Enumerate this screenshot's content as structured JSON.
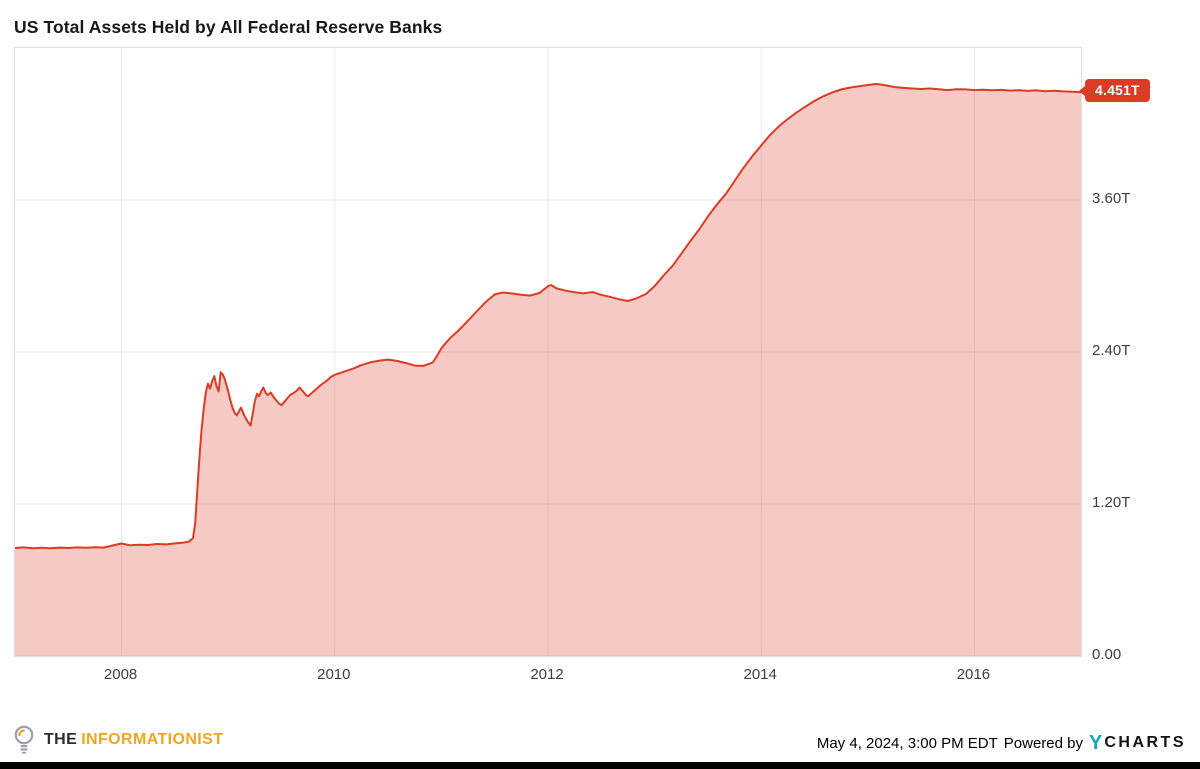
{
  "page": {
    "title": "US Total Assets Held by All Federal Reserve Banks"
  },
  "colors": {
    "line": "#dc3b24",
    "fill": "rgba(220,59,36,0.27)",
    "grid": "#e9e9e9",
    "border": "#e0e0e0",
    "brand_orange": "#f2a51c",
    "ycharts_teal": "#14a5c5",
    "bottom_bar": "#000000"
  },
  "chart_data": {
    "type": "area",
    "title": "US Total Assets Held by All Federal Reserve Banks",
    "xlim": [
      2007,
      2017
    ],
    "ylim": [
      0,
      4.8
    ],
    "grid": true,
    "legend_position": "none",
    "x_ticks": [
      {
        "value": 2008,
        "label": "2008"
      },
      {
        "value": 2010,
        "label": "2010"
      },
      {
        "value": 2012,
        "label": "2012"
      },
      {
        "value": 2014,
        "label": "2014"
      },
      {
        "value": 2016,
        "label": "2016"
      }
    ],
    "y_ticks": [
      {
        "value": 3.6,
        "label": "3.60T"
      },
      {
        "value": 2.4,
        "label": "2.40T"
      },
      {
        "value": 1.2,
        "label": "1.20T"
      },
      {
        "value": 0,
        "label": "0.00"
      }
    ],
    "last_value": 4.451,
    "last_value_label": "4.451T",
    "points": [
      [
        2007.0,
        0.853
      ],
      [
        2007.08,
        0.857
      ],
      [
        2007.17,
        0.851
      ],
      [
        2007.25,
        0.855
      ],
      [
        2007.33,
        0.85
      ],
      [
        2007.42,
        0.856
      ],
      [
        2007.5,
        0.853
      ],
      [
        2007.58,
        0.857
      ],
      [
        2007.67,
        0.854
      ],
      [
        2007.75,
        0.859
      ],
      [
        2007.83,
        0.856
      ],
      [
        2007.92,
        0.873
      ],
      [
        2008.0,
        0.888
      ],
      [
        2008.08,
        0.874
      ],
      [
        2008.17,
        0.879
      ],
      [
        2008.25,
        0.876
      ],
      [
        2008.33,
        0.884
      ],
      [
        2008.42,
        0.881
      ],
      [
        2008.5,
        0.889
      ],
      [
        2008.58,
        0.895
      ],
      [
        2008.63,
        0.902
      ],
      [
        2008.67,
        0.93
      ],
      [
        2008.69,
        1.05
      ],
      [
        2008.71,
        1.31
      ],
      [
        2008.73,
        1.56
      ],
      [
        2008.75,
        1.78
      ],
      [
        2008.77,
        1.95
      ],
      [
        2008.79,
        2.08
      ],
      [
        2008.81,
        2.15
      ],
      [
        2008.83,
        2.11
      ],
      [
        2008.85,
        2.17
      ],
      [
        2008.87,
        2.21
      ],
      [
        2008.89,
        2.13
      ],
      [
        2008.91,
        2.09
      ],
      [
        2008.93,
        2.24
      ],
      [
        2008.95,
        2.22
      ],
      [
        2008.97,
        2.18
      ],
      [
        2009.0,
        2.09
      ],
      [
        2009.02,
        2.02
      ],
      [
        2009.04,
        1.96
      ],
      [
        2009.06,
        1.92
      ],
      [
        2009.08,
        1.9
      ],
      [
        2009.1,
        1.93
      ],
      [
        2009.12,
        1.96
      ],
      [
        2009.15,
        1.9
      ],
      [
        2009.17,
        1.87
      ],
      [
        2009.19,
        1.84
      ],
      [
        2009.21,
        1.82
      ],
      [
        2009.23,
        1.91
      ],
      [
        2009.25,
        2.01
      ],
      [
        2009.27,
        2.07
      ],
      [
        2009.29,
        2.05
      ],
      [
        2009.31,
        2.09
      ],
      [
        2009.33,
        2.12
      ],
      [
        2009.35,
        2.08
      ],
      [
        2009.37,
        2.06
      ],
      [
        2009.4,
        2.08
      ],
      [
        2009.42,
        2.05
      ],
      [
        2009.44,
        2.03
      ],
      [
        2009.46,
        2.01
      ],
      [
        2009.48,
        1.99
      ],
      [
        2009.5,
        1.98
      ],
      [
        2009.52,
        2.0
      ],
      [
        2009.54,
        2.02
      ],
      [
        2009.56,
        2.04
      ],
      [
        2009.58,
        2.06
      ],
      [
        2009.62,
        2.08
      ],
      [
        2009.65,
        2.1
      ],
      [
        2009.67,
        2.12
      ],
      [
        2009.69,
        2.1
      ],
      [
        2009.71,
        2.08
      ],
      [
        2009.73,
        2.06
      ],
      [
        2009.75,
        2.05
      ],
      [
        2009.79,
        2.08
      ],
      [
        2009.83,
        2.11
      ],
      [
        2009.87,
        2.14
      ],
      [
        2009.92,
        2.17
      ],
      [
        2009.96,
        2.2
      ],
      [
        2010.0,
        2.22
      ],
      [
        2010.08,
        2.243
      ],
      [
        2010.17,
        2.268
      ],
      [
        2010.25,
        2.296
      ],
      [
        2010.33,
        2.318
      ],
      [
        2010.42,
        2.332
      ],
      [
        2010.5,
        2.34
      ],
      [
        2010.58,
        2.33
      ],
      [
        2010.67,
        2.312
      ],
      [
        2010.75,
        2.293
      ],
      [
        2010.83,
        2.29
      ],
      [
        2010.92,
        2.318
      ],
      [
        2010.96,
        2.37
      ],
      [
        2011.0,
        2.43
      ],
      [
        2011.08,
        2.508
      ],
      [
        2011.17,
        2.578
      ],
      [
        2011.25,
        2.648
      ],
      [
        2011.33,
        2.72
      ],
      [
        2011.42,
        2.798
      ],
      [
        2011.5,
        2.855
      ],
      [
        2011.58,
        2.87
      ],
      [
        2011.67,
        2.861
      ],
      [
        2011.75,
        2.852
      ],
      [
        2011.83,
        2.845
      ],
      [
        2011.92,
        2.866
      ],
      [
        2012.0,
        2.92
      ],
      [
        2012.03,
        2.928
      ],
      [
        2012.08,
        2.902
      ],
      [
        2012.17,
        2.884
      ],
      [
        2012.25,
        2.871
      ],
      [
        2012.33,
        2.863
      ],
      [
        2012.38,
        2.869
      ],
      [
        2012.42,
        2.873
      ],
      [
        2012.5,
        2.851
      ],
      [
        2012.58,
        2.836
      ],
      [
        2012.67,
        2.816
      ],
      [
        2012.75,
        2.803
      ],
      [
        2012.83,
        2.823
      ],
      [
        2012.92,
        2.859
      ],
      [
        2013.0,
        2.92
      ],
      [
        2013.08,
        3.0
      ],
      [
        2013.17,
        3.081
      ],
      [
        2013.25,
        3.175
      ],
      [
        2013.33,
        3.27
      ],
      [
        2013.42,
        3.37
      ],
      [
        2013.5,
        3.47
      ],
      [
        2013.58,
        3.56
      ],
      [
        2013.67,
        3.65
      ],
      [
        2013.75,
        3.75
      ],
      [
        2013.83,
        3.85
      ],
      [
        2013.92,
        3.95
      ],
      [
        2014.0,
        4.03
      ],
      [
        2014.08,
        4.11
      ],
      [
        2014.17,
        4.185
      ],
      [
        2014.25,
        4.24
      ],
      [
        2014.33,
        4.29
      ],
      [
        2014.42,
        4.34
      ],
      [
        2014.5,
        4.382
      ],
      [
        2014.58,
        4.418
      ],
      [
        2014.67,
        4.45
      ],
      [
        2014.75,
        4.472
      ],
      [
        2014.83,
        4.487
      ],
      [
        2014.92,
        4.498
      ],
      [
        2015.0,
        4.508
      ],
      [
        2015.08,
        4.516
      ],
      [
        2015.12,
        4.512
      ],
      [
        2015.17,
        4.505
      ],
      [
        2015.25,
        4.492
      ],
      [
        2015.33,
        4.485
      ],
      [
        2015.42,
        4.48
      ],
      [
        2015.5,
        4.476
      ],
      [
        2015.58,
        4.48
      ],
      [
        2015.67,
        4.474
      ],
      [
        2015.75,
        4.468
      ],
      [
        2015.83,
        4.474
      ],
      [
        2015.92,
        4.473
      ],
      [
        2016.0,
        4.468
      ],
      [
        2016.08,
        4.471
      ],
      [
        2016.17,
        4.466
      ],
      [
        2016.25,
        4.469
      ],
      [
        2016.33,
        4.464
      ],
      [
        2016.42,
        4.467
      ],
      [
        2016.5,
        4.461
      ],
      [
        2016.58,
        4.465
      ],
      [
        2016.67,
        4.459
      ],
      [
        2016.75,
        4.462
      ],
      [
        2016.83,
        4.457
      ],
      [
        2016.92,
        4.455
      ],
      [
        2017.0,
        4.451
      ]
    ]
  },
  "footer": {
    "brand": {
      "the": "THE",
      "name": "INFORMATIONIST"
    },
    "timestamp": "May 4, 2024, 3:00 PM EDT",
    "powered_by": "Powered by",
    "ycharts": {
      "y": "Y",
      "charts": "CHARTS"
    }
  }
}
